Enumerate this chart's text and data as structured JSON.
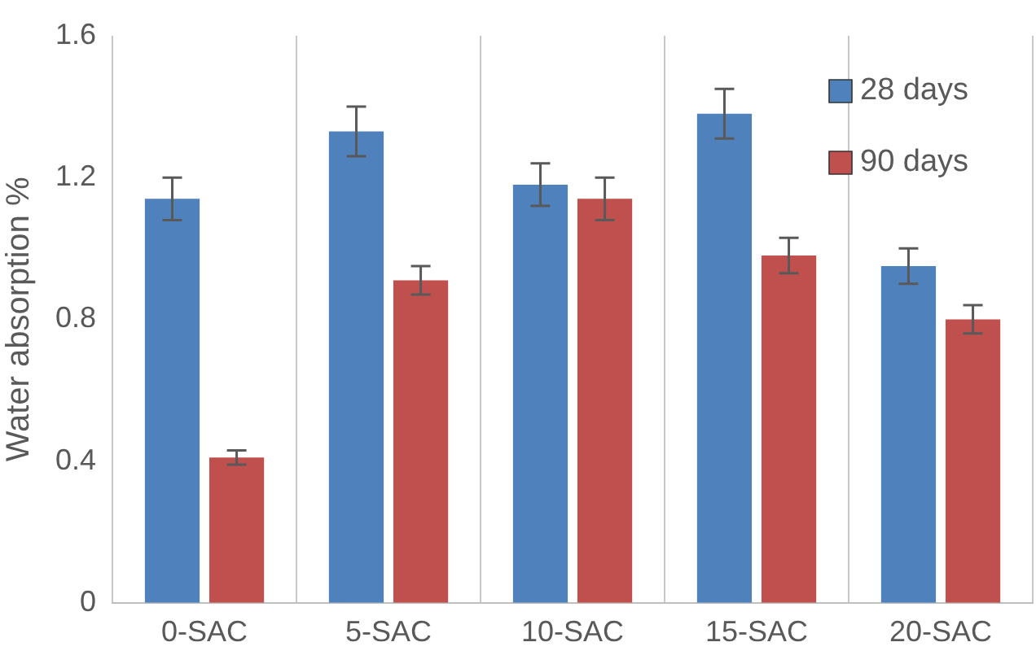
{
  "chart_data": {
    "type": "bar",
    "ylabel": "Water absorption %",
    "categories": [
      "0-SAC",
      "5-SAC",
      "10-SAC",
      "15-SAC",
      "20-SAC"
    ],
    "series": [
      {
        "name": "28 days",
        "color": "#4f81bd",
        "values": [
          1.14,
          1.33,
          1.18,
          1.38,
          0.95
        ],
        "errors": [
          0.06,
          0.07,
          0.06,
          0.07,
          0.05
        ]
      },
      {
        "name": "90 days",
        "color": "#c0504d",
        "values": [
          0.41,
          0.91,
          1.14,
          0.98,
          0.8
        ],
        "errors": [
          0.02,
          0.04,
          0.06,
          0.05,
          0.04
        ]
      }
    ],
    "ylim": [
      0,
      1.6
    ],
    "yticks": [
      0,
      0.4,
      0.8,
      1.2,
      1.6
    ],
    "grid": "x",
    "legend": "top right"
  }
}
